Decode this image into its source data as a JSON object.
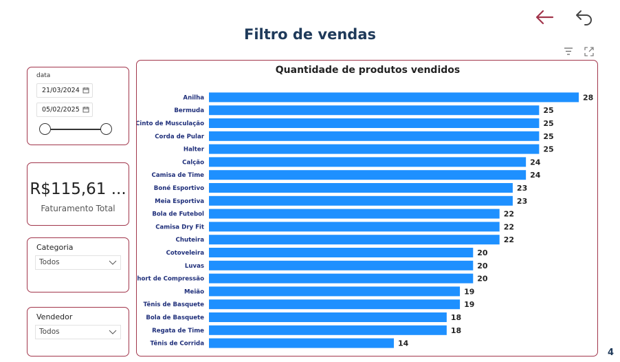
{
  "header": {
    "title": "Filtro de vendas"
  },
  "nav": {
    "back_icon": "arrow-left-icon",
    "undo_icon": "undo-icon"
  },
  "visual_header": {
    "filter_icon": "filter-icon",
    "focus_icon": "focus-mode-icon"
  },
  "date_slicer": {
    "title": "data",
    "start": "21/03/2024",
    "end": "05/02/2025",
    "range_start_fraction": 0,
    "range_end_fraction": 1
  },
  "kpi": {
    "value": "R$115,61 ...",
    "label": "Faturamento Total"
  },
  "categoria": {
    "title": "Categoria",
    "selected": "Todos"
  },
  "vendedor": {
    "title": "Vendedor",
    "selected": "Todos"
  },
  "colors": {
    "accent_border": "#a1344a",
    "bar": "#1e90ff",
    "label": "#1f2f7a",
    "title": "#1f3a5a",
    "back_arrow": "#a1344a"
  },
  "page": {
    "number": "4"
  },
  "chart_data": {
    "type": "bar",
    "orientation": "horizontal",
    "title": "Quantidade de produtos vendidos",
    "categories": [
      "Anilha",
      "Bermuda",
      "Cinto de Musculação",
      "Corda de Pular",
      "Halter",
      "Calção",
      "Camisa de Time",
      "Boné Esportivo",
      "Meia Esportiva",
      "Bola de Futebol",
      "Camisa Dry Fit",
      "Chuteira",
      "Cotoveleira",
      "Luvas",
      "Short de Compressão",
      "Meião",
      "Tênis de Basquete",
      "Bola de Basquete",
      "Regata de Time",
      "Tênis de Corrida"
    ],
    "values": [
      28,
      25,
      25,
      25,
      25,
      24,
      24,
      23,
      23,
      22,
      22,
      22,
      20,
      20,
      20,
      19,
      19,
      18,
      18,
      14
    ],
    "xlim": [
      0,
      28
    ],
    "data_labels": true,
    "grid": false
  }
}
